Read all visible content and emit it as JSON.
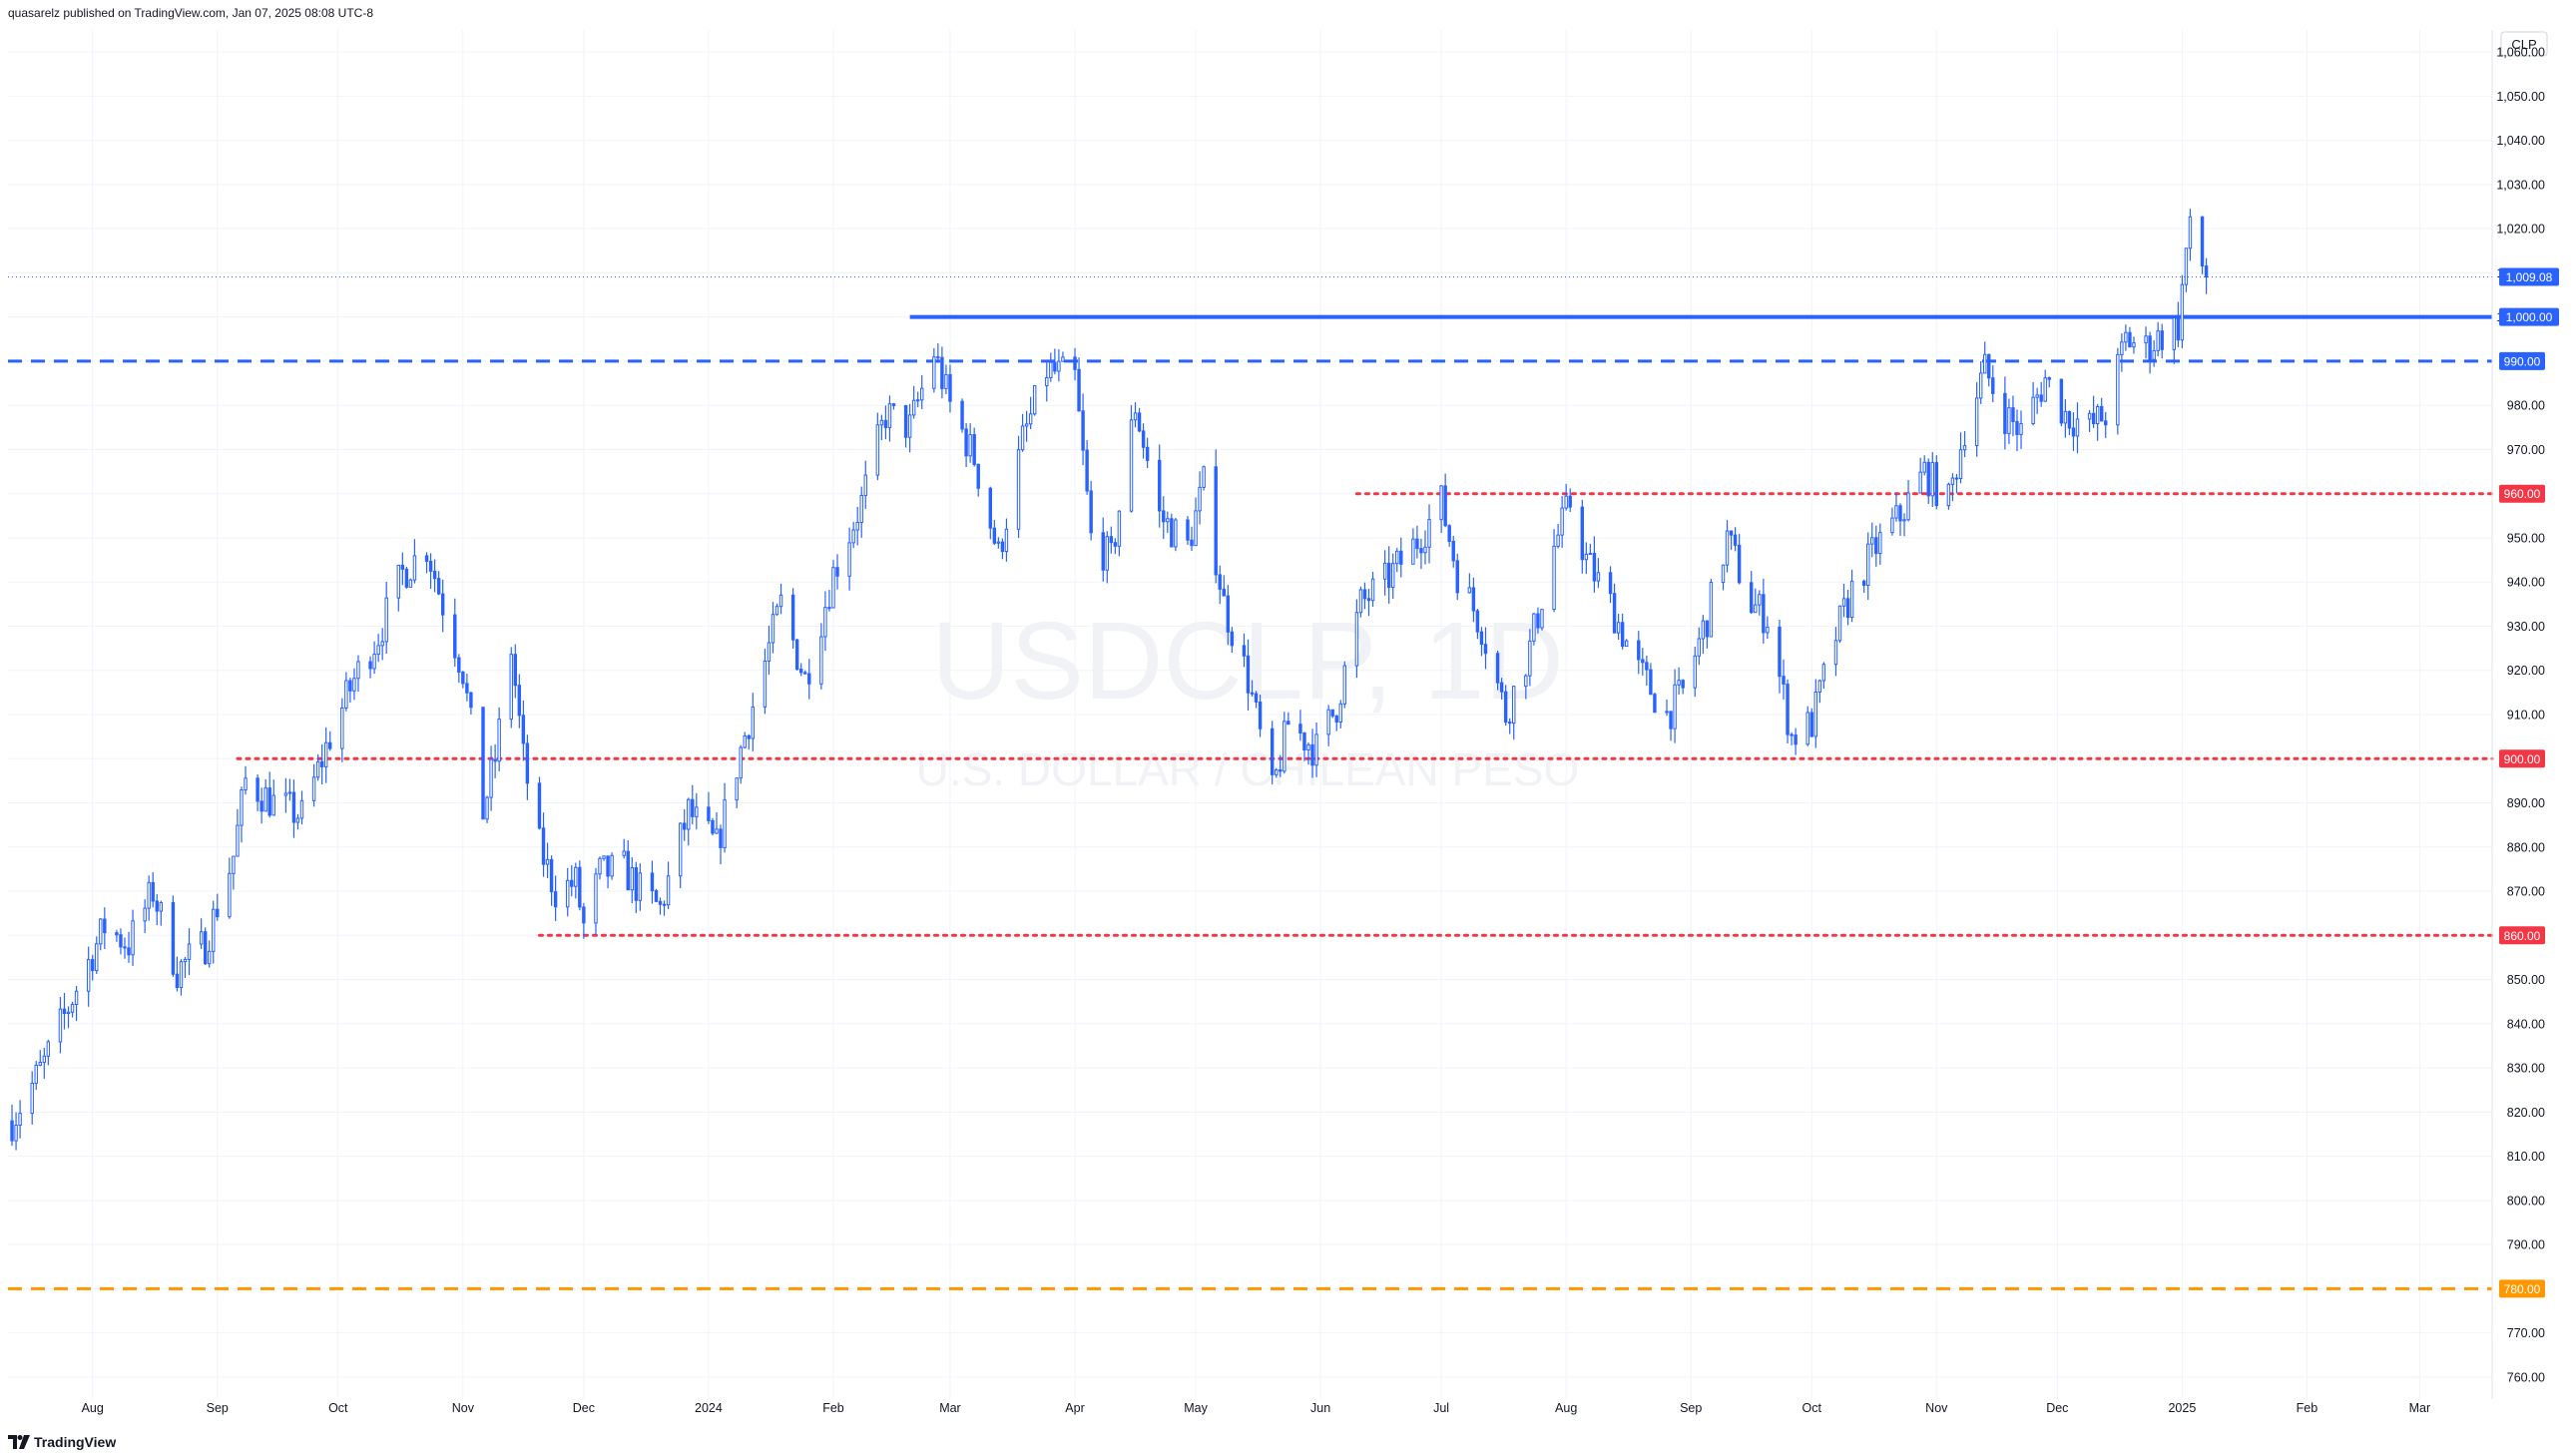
{
  "header": {
    "publisher_line": "quasarelz published on TradingView.com, Jan 07, 2025 08:08 UTC-8"
  },
  "footer": {
    "brand": "TradingView",
    "logo_icon": "tradingview-logo-icon"
  },
  "watermark": {
    "symbol": "USDCLP, 1D",
    "description": "U.S. DOLLAR / CHILEAN PESO"
  },
  "colors": {
    "candle": "#2962ff",
    "support_line": "#2962ff",
    "red_level": "#f23645",
    "orange_level": "#ff9800",
    "last_price": "#2962ff",
    "grid": "#f0f3fa",
    "axis_text": "#131722"
  },
  "chart_data": {
    "type": "candlestick",
    "symbol": "USDCLP",
    "interval": "1D",
    "currency_label": "CLP",
    "y_range": [
      755,
      1065
    ],
    "y_ticks": [
      "1,060.00",
      "1,050.00",
      "1,040.00",
      "1,030.00",
      "1,020.00",
      "1,010.00",
      "1,000.00",
      "990.00",
      "980.00",
      "970.00",
      "960.00",
      "950.00",
      "940.00",
      "930.00",
      "920.00",
      "910.00",
      "900.00",
      "890.00",
      "880.00",
      "870.00",
      "860.00",
      "850.00",
      "840.00",
      "830.00",
      "820.00",
      "810.00",
      "800.00",
      "790.00",
      "780.00",
      "770.00",
      "760.00"
    ],
    "x_ticks": [
      {
        "label": "Aug",
        "date": "2023-08-01"
      },
      {
        "label": "Sep",
        "date": "2023-09-01"
      },
      {
        "label": "Oct",
        "date": "2023-10-01"
      },
      {
        "label": "Nov",
        "date": "2023-11-01"
      },
      {
        "label": "Dec",
        "date": "2023-12-01"
      },
      {
        "label": "2024",
        "date": "2024-01-01"
      },
      {
        "label": "Feb",
        "date": "2024-02-01"
      },
      {
        "label": "Mar",
        "date": "2024-03-01"
      },
      {
        "label": "Apr",
        "date": "2024-04-01"
      },
      {
        "label": "May",
        "date": "2024-05-01"
      },
      {
        "label": "Jun",
        "date": "2024-06-01"
      },
      {
        "label": "Jul",
        "date": "2024-07-01"
      },
      {
        "label": "Aug",
        "date": "2024-08-01"
      },
      {
        "label": "Sep",
        "date": "2024-09-01"
      },
      {
        "label": "Oct",
        "date": "2024-10-01"
      },
      {
        "label": "Nov",
        "date": "2024-11-01"
      },
      {
        "label": "Dec",
        "date": "2024-12-01"
      },
      {
        "label": "2025",
        "date": "2025-01-01"
      },
      {
        "label": "Feb",
        "date": "2025-02-01"
      },
      {
        "label": "Mar",
        "date": "2025-03-01"
      }
    ],
    "x_range": [
      "2023-07-11",
      "2025-03-19"
    ],
    "last_price": {
      "value": 1009.08,
      "label": "1,009.08"
    },
    "levels": [
      {
        "value": 1000,
        "label": "1,000.00",
        "style": "solid",
        "color": "#2962ff",
        "from": "2024-02-20"
      },
      {
        "value": 990,
        "label": "990.00",
        "style": "dashed",
        "color": "#2962ff",
        "from": "2023-07-11"
      },
      {
        "value": 960,
        "label": "960.00",
        "style": "dotted",
        "color": "#f23645",
        "from": "2024-06-10"
      },
      {
        "value": 900,
        "label": "900.00",
        "style": "dotted",
        "color": "#f23645",
        "from": "2023-09-06"
      },
      {
        "value": 860,
        "label": "860.00",
        "style": "dotted",
        "color": "#f23645",
        "from": "2023-11-20"
      },
      {
        "value": 780,
        "label": "780.00",
        "style": "dashed",
        "color": "#ff9800",
        "from": "2023-07-11"
      }
    ],
    "close_path": [
      {
        "date": "2023-07-12",
        "close": 818
      },
      {
        "date": "2023-07-20",
        "close": 831
      },
      {
        "date": "2023-07-28",
        "close": 848
      },
      {
        "date": "2023-08-04",
        "close": 862
      },
      {
        "date": "2023-08-10",
        "close": 858
      },
      {
        "date": "2023-08-16",
        "close": 870
      },
      {
        "date": "2023-08-22",
        "close": 852
      },
      {
        "date": "2023-08-29",
        "close": 858
      },
      {
        "date": "2023-09-05",
        "close": 878
      },
      {
        "date": "2023-09-08",
        "close": 895
      },
      {
        "date": "2023-09-15",
        "close": 890
      },
      {
        "date": "2023-09-22",
        "close": 887
      },
      {
        "date": "2023-09-29",
        "close": 905
      },
      {
        "date": "2023-10-05",
        "close": 918
      },
      {
        "date": "2023-10-11",
        "close": 928
      },
      {
        "date": "2023-10-17",
        "close": 942
      },
      {
        "date": "2023-10-23",
        "close": 948
      },
      {
        "date": "2023-10-27",
        "close": 935
      },
      {
        "date": "2023-11-01",
        "close": 920
      },
      {
        "date": "2023-11-06",
        "close": 888
      },
      {
        "date": "2023-11-09",
        "close": 900
      },
      {
        "date": "2023-11-13",
        "close": 925
      },
      {
        "date": "2023-11-16",
        "close": 900
      },
      {
        "date": "2023-11-20",
        "close": 880
      },
      {
        "date": "2023-11-24",
        "close": 870
      },
      {
        "date": "2023-11-29",
        "close": 872
      },
      {
        "date": "2023-12-01",
        "close": 862
      },
      {
        "date": "2023-12-05",
        "close": 874
      },
      {
        "date": "2023-12-11",
        "close": 875
      },
      {
        "date": "2023-12-15",
        "close": 870
      },
      {
        "date": "2023-12-20",
        "close": 866
      },
      {
        "date": "2023-12-27",
        "close": 888
      },
      {
        "date": "2024-01-03",
        "close": 880
      },
      {
        "date": "2024-01-09",
        "close": 902
      },
      {
        "date": "2024-01-15",
        "close": 922
      },
      {
        "date": "2024-01-19",
        "close": 935
      },
      {
        "date": "2024-01-25",
        "close": 918
      },
      {
        "date": "2024-02-01",
        "close": 942
      },
      {
        "date": "2024-02-08",
        "close": 958
      },
      {
        "date": "2024-02-14",
        "close": 978
      },
      {
        "date": "2024-02-20",
        "close": 975
      },
      {
        "date": "2024-02-26",
        "close": 992
      },
      {
        "date": "2024-03-01",
        "close": 980
      },
      {
        "date": "2024-03-07",
        "close": 968
      },
      {
        "date": "2024-03-13",
        "close": 946
      },
      {
        "date": "2024-03-19",
        "close": 972
      },
      {
        "date": "2024-03-25",
        "close": 988
      },
      {
        "date": "2024-04-01",
        "close": 986
      },
      {
        "date": "2024-04-05",
        "close": 950
      },
      {
        "date": "2024-04-10",
        "close": 945
      },
      {
        "date": "2024-04-16",
        "close": 980
      },
      {
        "date": "2024-04-22",
        "close": 955
      },
      {
        "date": "2024-04-29",
        "close": 948
      },
      {
        "date": "2024-05-03",
        "close": 962
      },
      {
        "date": "2024-05-08",
        "close": 935
      },
      {
        "date": "2024-05-14",
        "close": 918
      },
      {
        "date": "2024-05-20",
        "close": 892
      },
      {
        "date": "2024-05-24",
        "close": 908
      },
      {
        "date": "2024-05-31",
        "close": 902
      },
      {
        "date": "2024-06-05",
        "close": 912
      },
      {
        "date": "2024-06-11",
        "close": 935
      },
      {
        "date": "2024-06-17",
        "close": 940
      },
      {
        "date": "2024-06-24",
        "close": 948
      },
      {
        "date": "2024-07-01",
        "close": 958
      },
      {
        "date": "2024-07-05",
        "close": 942
      },
      {
        "date": "2024-07-11",
        "close": 930
      },
      {
        "date": "2024-07-17",
        "close": 910
      },
      {
        "date": "2024-07-23",
        "close": 925
      },
      {
        "date": "2024-07-29",
        "close": 948
      },
      {
        "date": "2024-08-02",
        "close": 958
      },
      {
        "date": "2024-08-06",
        "close": 945
      },
      {
        "date": "2024-08-12",
        "close": 935
      },
      {
        "date": "2024-08-19",
        "close": 920
      },
      {
        "date": "2024-08-26",
        "close": 910
      },
      {
        "date": "2024-08-30",
        "close": 915
      },
      {
        "date": "2024-09-05",
        "close": 932
      },
      {
        "date": "2024-09-10",
        "close": 950
      },
      {
        "date": "2024-09-16",
        "close": 935
      },
      {
        "date": "2024-09-20",
        "close": 932
      },
      {
        "date": "2024-09-26",
        "close": 905
      },
      {
        "date": "2024-10-01",
        "close": 908
      },
      {
        "date": "2024-10-07",
        "close": 928
      },
      {
        "date": "2024-10-11",
        "close": 938
      },
      {
        "date": "2024-10-17",
        "close": 948
      },
      {
        "date": "2024-10-23",
        "close": 955
      },
      {
        "date": "2024-10-29",
        "close": 965
      },
      {
        "date": "2024-11-04",
        "close": 958
      },
      {
        "date": "2024-11-08",
        "close": 975
      },
      {
        "date": "2024-11-13",
        "close": 988
      },
      {
        "date": "2024-11-18",
        "close": 978
      },
      {
        "date": "2024-11-22",
        "close": 974
      },
      {
        "date": "2024-11-28",
        "close": 986
      },
      {
        "date": "2024-12-03",
        "close": 978
      },
      {
        "date": "2024-12-09",
        "close": 975
      },
      {
        "date": "2024-12-13",
        "close": 978
      },
      {
        "date": "2024-12-18",
        "close": 995
      },
      {
        "date": "2024-12-23",
        "close": 993
      },
      {
        "date": "2024-12-27",
        "close": 996
      },
      {
        "date": "2024-12-31",
        "close": 998
      },
      {
        "date": "2025-01-02",
        "close": 1015
      },
      {
        "date": "2025-01-03",
        "close": 1019
      },
      {
        "date": "2025-01-07",
        "close": 1009.08
      }
    ]
  }
}
